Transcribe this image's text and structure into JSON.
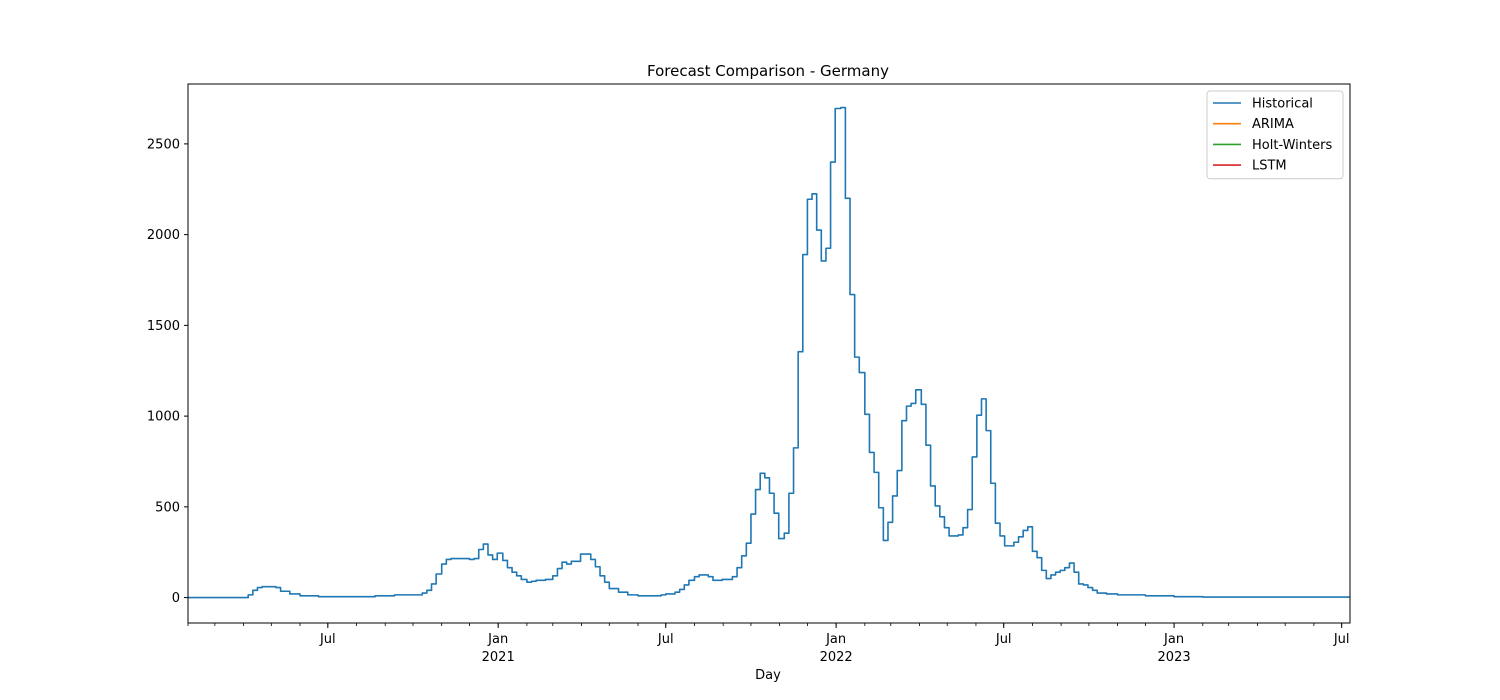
{
  "chart_data": {
    "type": "line",
    "title": "Forecast Comparison - Germany",
    "xlabel": "Day",
    "ylabel": "",
    "xlim": [
      "2020-02-01",
      "2023-07-10"
    ],
    "ylim": [
      -140,
      2830
    ],
    "yticks": [
      0,
      500,
      1000,
      1500,
      2000,
      2500
    ],
    "xticks_major": [
      {
        "date": "2020-07-01",
        "label": "Jul",
        "sublabel": ""
      },
      {
        "date": "2021-01-01",
        "label": "Jan",
        "sublabel": "2021"
      },
      {
        "date": "2021-07-01",
        "label": "Jul",
        "sublabel": ""
      },
      {
        "date": "2022-01-01",
        "label": "Jan",
        "sublabel": "2022"
      },
      {
        "date": "2022-07-01",
        "label": "Jul",
        "sublabel": ""
      },
      {
        "date": "2023-01-01",
        "label": "Jan",
        "sublabel": "2023"
      },
      {
        "date": "2023-07-01",
        "label": "Jul",
        "sublabel": ""
      }
    ],
    "legend_position": "top-right",
    "grid": false,
    "series": [
      {
        "name": "Historical",
        "color": "#1f77b4",
        "step": true,
        "points": [
          [
            "2020-02-01",
            0
          ],
          [
            "2020-04-01",
            0
          ],
          [
            "2020-04-06",
            15
          ],
          [
            "2020-04-11",
            40
          ],
          [
            "2020-04-16",
            55
          ],
          [
            "2020-04-21",
            60
          ],
          [
            "2020-05-06",
            55
          ],
          [
            "2020-05-11",
            35
          ],
          [
            "2020-05-21",
            20
          ],
          [
            "2020-06-01",
            10
          ],
          [
            "2020-06-21",
            5
          ],
          [
            "2020-07-01",
            5
          ],
          [
            "2020-08-01",
            5
          ],
          [
            "2020-08-21",
            10
          ],
          [
            "2020-09-11",
            15
          ],
          [
            "2020-09-21",
            15
          ],
          [
            "2020-10-11",
            25
          ],
          [
            "2020-10-16",
            40
          ],
          [
            "2020-10-21",
            75
          ],
          [
            "2020-10-26",
            130
          ],
          [
            "2020-11-01",
            185
          ],
          [
            "2020-11-06",
            210
          ],
          [
            "2020-11-11",
            215
          ],
          [
            "2020-11-21",
            215
          ],
          [
            "2020-12-01",
            210
          ],
          [
            "2020-12-06",
            215
          ],
          [
            "2020-12-11",
            265
          ],
          [
            "2020-12-16",
            295
          ],
          [
            "2020-12-21",
            235
          ],
          [
            "2020-12-26",
            210
          ],
          [
            "2020-12-31",
            245
          ],
          [
            "2021-01-06",
            205
          ],
          [
            "2021-01-11",
            165
          ],
          [
            "2021-01-16",
            140
          ],
          [
            "2021-01-21",
            120
          ],
          [
            "2021-01-26",
            100
          ],
          [
            "2021-02-01",
            85
          ],
          [
            "2021-02-06",
            90
          ],
          [
            "2021-02-11",
            95
          ],
          [
            "2021-02-21",
            100
          ],
          [
            "2021-03-01",
            120
          ],
          [
            "2021-03-06",
            160
          ],
          [
            "2021-03-11",
            195
          ],
          [
            "2021-03-16",
            185
          ],
          [
            "2021-03-21",
            200
          ],
          [
            "2021-03-31",
            240
          ],
          [
            "2021-04-11",
            210
          ],
          [
            "2021-04-16",
            170
          ],
          [
            "2021-04-21",
            120
          ],
          [
            "2021-04-26",
            85
          ],
          [
            "2021-05-01",
            50
          ],
          [
            "2021-05-11",
            30
          ],
          [
            "2021-05-21",
            15
          ],
          [
            "2021-06-01",
            10
          ],
          [
            "2021-06-21",
            10
          ],
          [
            "2021-06-26",
            15
          ],
          [
            "2021-07-01",
            20
          ],
          [
            "2021-07-11",
            30
          ],
          [
            "2021-07-16",
            45
          ],
          [
            "2021-07-21",
            70
          ],
          [
            "2021-07-26",
            95
          ],
          [
            "2021-08-01",
            115
          ],
          [
            "2021-08-06",
            125
          ],
          [
            "2021-08-16",
            115
          ],
          [
            "2021-08-21",
            95
          ],
          [
            "2021-08-31",
            100
          ],
          [
            "2021-09-11",
            115
          ],
          [
            "2021-09-16",
            165
          ],
          [
            "2021-09-21",
            230
          ],
          [
            "2021-09-26",
            300
          ],
          [
            "2021-10-01",
            460
          ],
          [
            "2021-10-06",
            595
          ],
          [
            "2021-10-11",
            685
          ],
          [
            "2021-10-16",
            660
          ],
          [
            "2021-10-21",
            575
          ],
          [
            "2021-10-26",
            465
          ],
          [
            "2021-10-31",
            325
          ],
          [
            "2021-11-06",
            355
          ],
          [
            "2021-11-11",
            575
          ],
          [
            "2021-11-16",
            825
          ],
          [
            "2021-11-21",
            1355
          ],
          [
            "2021-11-26",
            1890
          ],
          [
            "2021-12-01",
            2195
          ],
          [
            "2021-12-06",
            2225
          ],
          [
            "2021-12-11",
            2025
          ],
          [
            "2021-12-16",
            1855
          ],
          [
            "2021-12-21",
            1925
          ],
          [
            "2021-12-26",
            2400
          ],
          [
            "2021-12-31",
            2695
          ],
          [
            "2022-01-06",
            2700
          ],
          [
            "2022-01-11",
            2200
          ],
          [
            "2022-01-16",
            1670
          ],
          [
            "2022-01-21",
            1325
          ],
          [
            "2022-01-26",
            1240
          ],
          [
            "2022-02-01",
            1010
          ],
          [
            "2022-02-06",
            800
          ],
          [
            "2022-02-11",
            690
          ],
          [
            "2022-02-16",
            495
          ],
          [
            "2022-02-21",
            315
          ],
          [
            "2022-02-26",
            415
          ],
          [
            "2022-03-03",
            560
          ],
          [
            "2022-03-08",
            700
          ],
          [
            "2022-03-13",
            975
          ],
          [
            "2022-03-18",
            1055
          ],
          [
            "2022-03-23",
            1070
          ],
          [
            "2022-03-28",
            1145
          ],
          [
            "2022-04-03",
            1065
          ],
          [
            "2022-04-08",
            840
          ],
          [
            "2022-04-13",
            615
          ],
          [
            "2022-04-18",
            505
          ],
          [
            "2022-04-23",
            445
          ],
          [
            "2022-04-28",
            385
          ],
          [
            "2022-05-03",
            340
          ],
          [
            "2022-05-13",
            345
          ],
          [
            "2022-05-18",
            385
          ],
          [
            "2022-05-23",
            485
          ],
          [
            "2022-05-28",
            775
          ],
          [
            "2022-06-02",
            1005
          ],
          [
            "2022-06-07",
            1095
          ],
          [
            "2022-06-12",
            920
          ],
          [
            "2022-06-17",
            630
          ],
          [
            "2022-06-22",
            410
          ],
          [
            "2022-06-27",
            340
          ],
          [
            "2022-07-02",
            285
          ],
          [
            "2022-07-12",
            305
          ],
          [
            "2022-07-17",
            335
          ],
          [
            "2022-07-22",
            370
          ],
          [
            "2022-07-27",
            390
          ],
          [
            "2022-08-01",
            255
          ],
          [
            "2022-08-06",
            220
          ],
          [
            "2022-08-11",
            150
          ],
          [
            "2022-08-16",
            105
          ],
          [
            "2022-08-21",
            125
          ],
          [
            "2022-08-26",
            140
          ],
          [
            "2022-08-31",
            150
          ],
          [
            "2022-09-05",
            165
          ],
          [
            "2022-09-10",
            190
          ],
          [
            "2022-09-15",
            140
          ],
          [
            "2022-09-20",
            75
          ],
          [
            "2022-09-25",
            70
          ],
          [
            "2022-09-30",
            55
          ],
          [
            "2022-10-05",
            40
          ],
          [
            "2022-10-10",
            25
          ],
          [
            "2022-10-20",
            20
          ],
          [
            "2022-11-01",
            15
          ],
          [
            "2022-12-01",
            10
          ],
          [
            "2023-01-01",
            5
          ],
          [
            "2023-02-01",
            3
          ],
          [
            "2023-07-10",
            0
          ]
        ]
      },
      {
        "name": "ARIMA",
        "color": "#ff7f0e",
        "points": []
      },
      {
        "name": "Holt-Winters",
        "color": "#2ca02c",
        "points": []
      },
      {
        "name": "LSTM",
        "color": "#d62728",
        "points": []
      }
    ]
  }
}
